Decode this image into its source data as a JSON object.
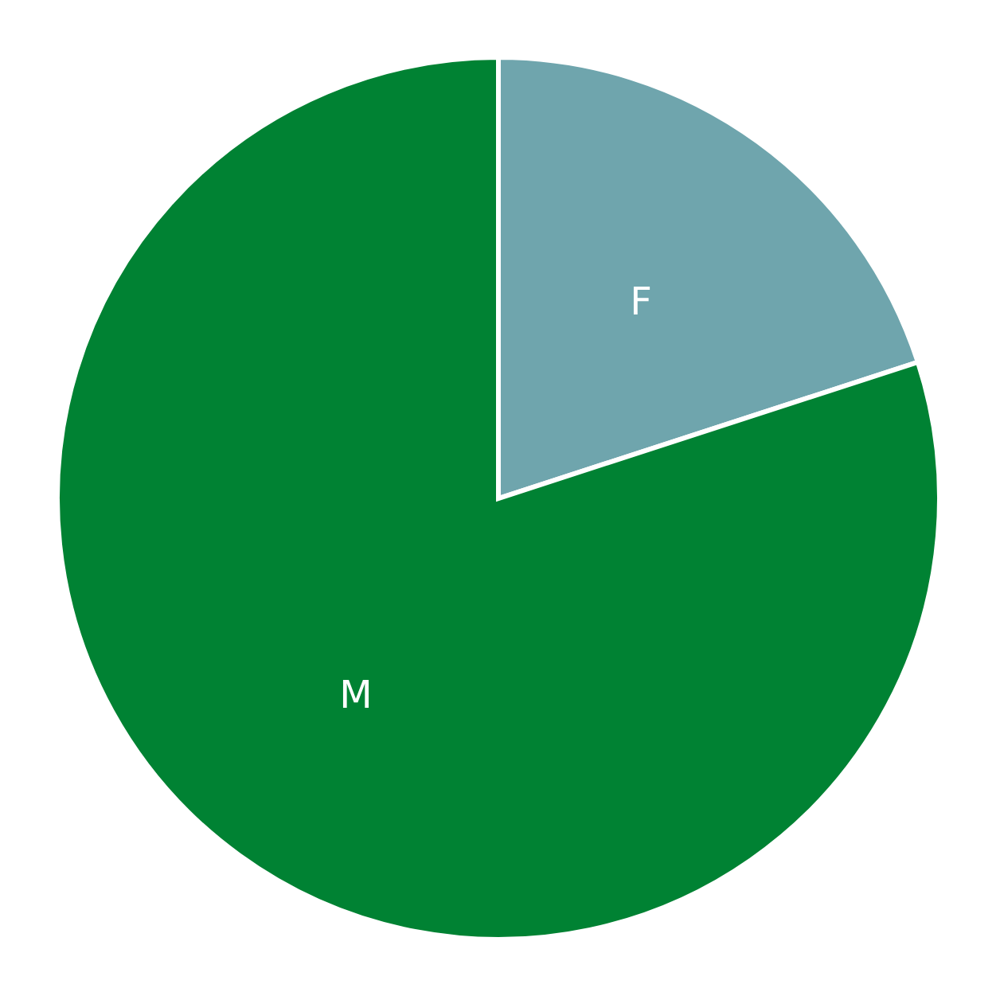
{
  "chart_data": {
    "type": "pie",
    "categories": [
      "F",
      "M"
    ],
    "values": [
      20,
      80
    ],
    "colors": [
      "#6fa5ad",
      "#008233"
    ]
  }
}
